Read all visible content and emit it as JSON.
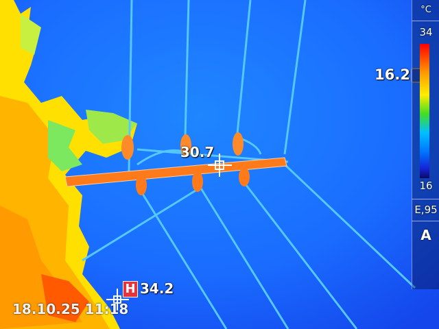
{
  "image": {
    "datetime": "18.10.25 11:18",
    "palette": "iron-rainbow",
    "colors": {
      "background": "#1a6fff",
      "hot": "#ff7a1a",
      "warm": "#ffd400",
      "line": "#4fd0ff"
    }
  },
  "spot": {
    "label": "30.7"
  },
  "hot_spot": {
    "badge": "H",
    "value": "34.2"
  },
  "scale": {
    "unit": "°C",
    "max": "34",
    "min": "16",
    "min_marker_value": "16.2"
  },
  "settings": {
    "emissivity": "E,95",
    "mode": "A"
  }
}
